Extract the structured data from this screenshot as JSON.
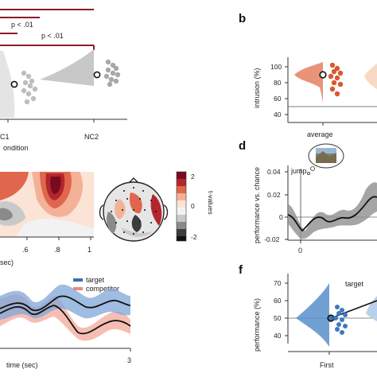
{
  "panel_a": {
    "significance": [
      {
        "label": "p < .01"
      },
      {
        "label": "p < .01"
      }
    ],
    "x_ticks": [
      "C1",
      "NC2"
    ],
    "x_label": "ondition",
    "colors": {
      "bracket": "#8b1c2a",
      "violin_left": "#e4e4e4",
      "violin_right": "#c8c8c8",
      "dots": "#a8a8a8"
    }
  },
  "panel_b": {
    "letter": "b",
    "ylabel": "intrusion (%)",
    "y_ticks": [
      "100",
      "80",
      "60",
      "40"
    ],
    "x_tick": "average",
    "colors": {
      "violin": "#e8937a",
      "dots": "#d9582e",
      "violin_light": "#f7d9c4"
    }
  },
  "panel_heatmap": {
    "x_ticks": [
      ".6",
      ".8",
      "1"
    ],
    "x_label": "sec)",
    "colorbar_ticks": [
      "2",
      "0",
      "-2"
    ],
    "colorbar_label": "t-values",
    "colors": [
      "#7a0a1f",
      "#b3262d",
      "#e0674d",
      "#f3b198",
      "#fbe3d6",
      "#f2f2f2",
      "#c9c9c9",
      "#8a8a8a",
      "#3c3c3c",
      "#111111"
    ]
  },
  "panel_d": {
    "letter": "d",
    "ylabel": "performance vs. chance",
    "y_ticks": [
      "0.04",
      "0.02",
      "0",
      "-0.02"
    ],
    "x_tick": "0",
    "annotation": "jump",
    "colors": {
      "line": "#111111",
      "band": "#8f8f8f"
    }
  },
  "panel_e": {
    "legend": [
      {
        "name": "target",
        "color": "#3a6fb5"
      },
      {
        "name": "competitor",
        "color": "#e88a7a"
      }
    ],
    "x_label": "time (sec)",
    "x_tick": "3"
  },
  "panel_f": {
    "letter": "f",
    "ylabel": "performance (%)",
    "y_ticks": [
      "70",
      "60",
      "50",
      "40"
    ],
    "x_tick": "First",
    "title": "target",
    "colors": {
      "violin": "#5b8fcb",
      "dots": "#3f79bd",
      "violin_light": "#b9d0ea"
    }
  }
}
